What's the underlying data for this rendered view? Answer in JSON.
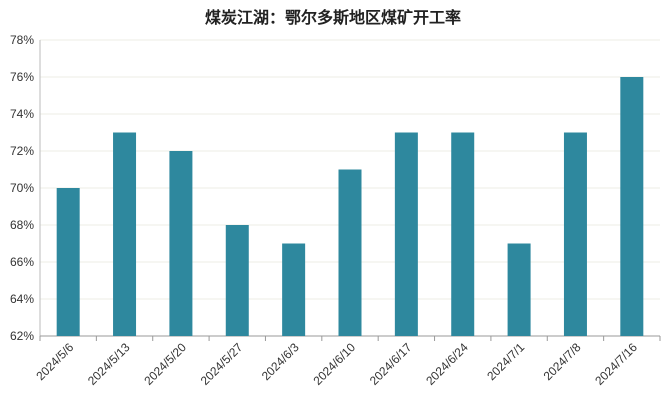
{
  "chart_data": {
    "type": "bar",
    "title": "煤炭江湖：鄂尔多斯地区煤矿开工率",
    "categories": [
      "2024/5/6",
      "2024/5/13",
      "2024/5/20",
      "2024/5/27",
      "2024/6/3",
      "2024/6/10",
      "2024/6/17",
      "2024/6/24",
      "2024/7/1",
      "2024/7/8",
      "2024/7/16"
    ],
    "values": [
      70,
      73,
      72,
      68,
      67,
      71,
      73,
      73,
      67,
      73,
      76
    ],
    "unit": "%",
    "ylim": [
      62,
      78
    ],
    "yticks": [
      62,
      64,
      66,
      68,
      70,
      72,
      74,
      76,
      78
    ],
    "grid": true,
    "legend": "none",
    "bar_color": "#2e889e"
  }
}
